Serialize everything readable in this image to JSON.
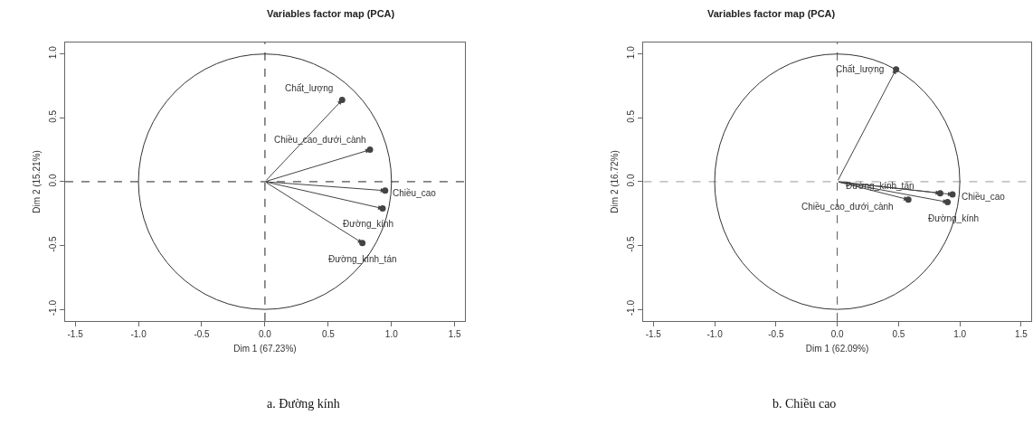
{
  "chart_data": [
    {
      "type": "scatter",
      "title": "Variables factor map (PCA)",
      "xlabel": "Dim 1 (67.23%)",
      "ylabel": "Dim 2 (15.21%)",
      "annotations": [
        "a. Đường kính",
        {
          "text": "Chất_lượng",
          "x": 0.61,
          "y": 0.64
        },
        {
          "text": "Chiều_cao_dưới_cành",
          "x": 0.83,
          "y": 0.25
        },
        {
          "text": "Chiều_cao",
          "x": 0.95,
          "y": -0.07
        },
        {
          "text": "Đường_kính",
          "x": 0.93,
          "y": -0.21
        },
        {
          "text": "Đường_kính_tán",
          "x": 0.77,
          "y": -0.48
        }
      ],
      "xlim": [
        -1.58,
        1.58
      ],
      "ylim": [
        -1.09,
        1.09
      ],
      "xticks": [
        -1.5,
        {
          "value": -1,
          "label": "-1.0"
        },
        -0.5,
        {
          "value": 0,
          "label": "0.0"
        },
        0.5,
        {
          "value": 1,
          "label": "1.0"
        },
        1.5
      ],
      "yticks": [
        {
          "value": -1,
          "label": "-1.0"
        },
        {
          "value": -0.5,
          "label": "-0.5"
        },
        {
          "value": 0,
          "label": "0.0"
        },
        {
          "value": 0.5,
          "label": "0.5"
        },
        {
          "value": 1,
          "label": "1.0"
        }
      ],
      "grid": false,
      "ref_lines": [
        {
          "axis": "x",
          "value": 0,
          "color": "#222222",
          "line_style": "dashed"
        },
        {
          "axis": "y",
          "value": 0,
          "color": "#222222",
          "line_style": "dashed"
        }
      ],
      "series": [
        {
          "marker": "circle",
          "color": "#444444",
          "x": [
            0.61,
            0.83,
            0.95,
            0.93,
            0.77
          ],
          "values": [
            0.64,
            0.25,
            -0.07,
            -0.21,
            -0.48
          ]
        }
      ]
    },
    {
      "type": "scatter",
      "title": "Variables factor map (PCA)",
      "xlabel": "Dim 1 (62.09%)",
      "ylabel": "Dim 2 (16.72%)",
      "annotations": [
        "b. Chiều cao",
        {
          "text": "Chất_lượng",
          "x": 0.48,
          "y": 0.88
        },
        {
          "text": "Chiều_cao_dưới_cành",
          "x": 0.58,
          "y": -0.14
        },
        {
          "text": "Chiều_cao",
          "x": 0.94,
          "y": -0.1
        },
        {
          "text": "Đường_kính",
          "x": 0.9,
          "y": -0.16
        },
        {
          "text": "Đường_kính_tán",
          "x": 0.84,
          "y": -0.09
        }
      ],
      "xlim": [
        -1.58,
        1.58
      ],
      "ylim": [
        -1.09,
        1.09
      ],
      "xticks": [
        -1.5,
        {
          "value": -1,
          "label": "-1.0"
        },
        -0.5,
        {
          "value": 0,
          "label": "0.0"
        },
        0.5,
        {
          "value": 1,
          "label": "1.0"
        },
        1.5
      ],
      "yticks": [
        {
          "value": -1,
          "label": "-1.0"
        },
        {
          "value": -0.5,
          "label": "-0.5"
        },
        {
          "value": 0,
          "label": "0.0"
        },
        {
          "value": 0.5,
          "label": "0.5"
        },
        {
          "value": 1,
          "label": "1.0"
        }
      ],
      "grid": false,
      "ref_lines": [
        {
          "axis": "x",
          "value": 0,
          "color": "#555555",
          "line_style": "dashed"
        },
        {
          "axis": "y",
          "value": 0,
          "color": "#999999",
          "line_style": "dashed"
        }
      ],
      "series": [
        {
          "marker": "circle",
          "color": "#444444",
          "x": [
            0.48,
            0.58,
            0.94,
            0.9,
            0.84
          ],
          "values": [
            0.88,
            -0.14,
            -0.1,
            -0.16,
            -0.09
          ]
        }
      ]
    }
  ]
}
